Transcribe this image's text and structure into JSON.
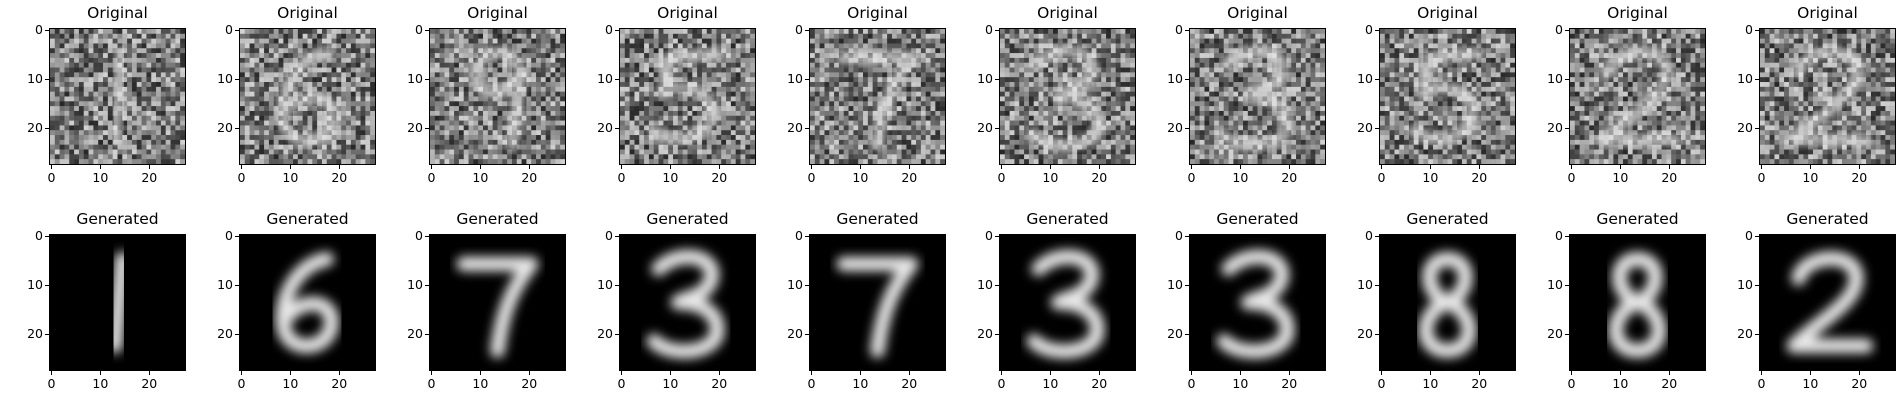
{
  "figure": {
    "rows": [
      {
        "row_id": "original",
        "panels": [
          {
            "title": "Original",
            "digit": "1",
            "style": "noisy"
          },
          {
            "title": "Original",
            "digit": "6",
            "style": "noisy"
          },
          {
            "title": "Original",
            "digit": "9",
            "style": "noisy"
          },
          {
            "title": "Original",
            "digit": "5",
            "style": "noisy"
          },
          {
            "title": "Original",
            "digit": "7",
            "style": "noisy"
          },
          {
            "title": "Original",
            "digit": "3",
            "style": "noisy"
          },
          {
            "title": "Original",
            "digit": "3",
            "style": "noisy"
          },
          {
            "title": "Original",
            "digit": "5",
            "style": "noisy"
          },
          {
            "title": "Original",
            "digit": "2",
            "style": "noisy"
          },
          {
            "title": "Original",
            "digit": "2",
            "style": "noisy"
          }
        ]
      },
      {
        "row_id": "generated",
        "panels": [
          {
            "title": "Generated",
            "digit": "1",
            "style": "blurred"
          },
          {
            "title": "Generated",
            "digit": "6",
            "style": "blurred"
          },
          {
            "title": "Generated",
            "digit": "7",
            "style": "blurred"
          },
          {
            "title": "Generated",
            "digit": "3",
            "style": "blurred"
          },
          {
            "title": "Generated",
            "digit": "7",
            "style": "blurred"
          },
          {
            "title": "Generated",
            "digit": "3",
            "style": "blurred"
          },
          {
            "title": "Generated",
            "digit": "3",
            "style": "blurred"
          },
          {
            "title": "Generated",
            "digit": "8",
            "style": "blurred"
          },
          {
            "title": "Generated",
            "digit": "8",
            "style": "blurred"
          },
          {
            "title": "Generated",
            "digit": "2",
            "style": "blurred"
          }
        ]
      }
    ],
    "axes": {
      "x_ticks": [
        "0",
        "10",
        "20"
      ],
      "y_ticks": [
        "0",
        "10",
        "20"
      ],
      "pixel_extent": 28
    },
    "colormap": "gray"
  }
}
